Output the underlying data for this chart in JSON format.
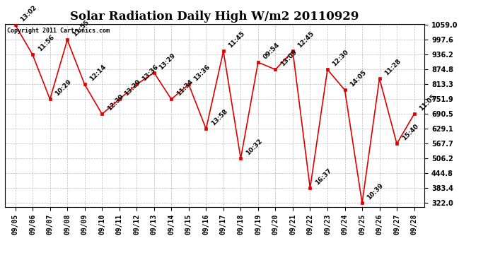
{
  "title": "Solar Radiation Daily High W/m2 20110929",
  "copyright": "Copyright 2011 Cartronics.com",
  "dates": [
    "09/05",
    "09/06",
    "09/07",
    "09/08",
    "09/09",
    "09/10",
    "09/11",
    "09/12",
    "09/13",
    "09/14",
    "09/15",
    "09/16",
    "09/17",
    "09/18",
    "09/19",
    "09/20",
    "09/21",
    "09/22",
    "09/23",
    "09/24",
    "09/25",
    "09/26",
    "09/27",
    "09/28"
  ],
  "values": [
    1059.0,
    936.2,
    751.9,
    997.6,
    813.3,
    690.5,
    751.9,
    813.3,
    862.0,
    751.9,
    813.3,
    629.1,
    951.0,
    506.2,
    905.0,
    874.8,
    951.0,
    383.4,
    874.8,
    790.0,
    322.0,
    838.0,
    567.7,
    690.5
  ],
  "labels": [
    "13:02",
    "11:56",
    "10:29",
    "11:55",
    "12:14",
    "12:39",
    "13:29",
    "13:36",
    "13:29",
    "11:34",
    "13:36",
    "13:58",
    "11:45",
    "10:32",
    "09:54",
    "13:09",
    "12:45",
    "16:37",
    "12:30",
    "14:05",
    "10:39",
    "11:28",
    "15:40",
    "11:05"
  ],
  "ylim_min": 322.0,
  "ylim_max": 1059.0,
  "yticks": [
    322.0,
    383.4,
    444.8,
    506.2,
    567.7,
    629.1,
    690.5,
    751.9,
    813.3,
    874.8,
    936.2,
    997.6,
    1059.0
  ],
  "line_color": "#dd0000",
  "bg_color": "#ffffff",
  "grid_color": "#bbbbbb",
  "title_fontsize": 12,
  "tick_fontsize": 7,
  "label_fontsize": 6.5
}
